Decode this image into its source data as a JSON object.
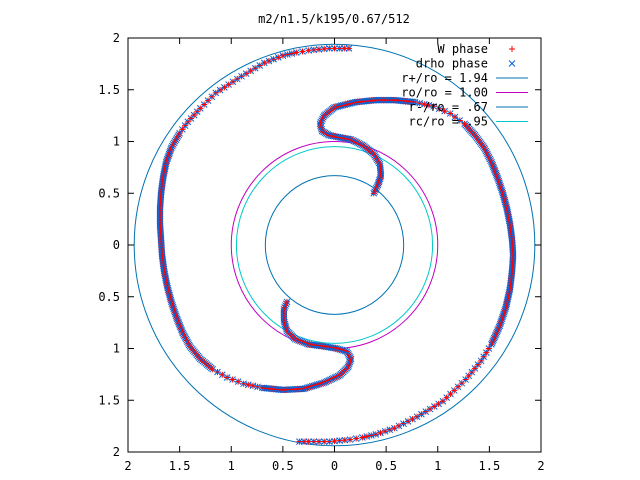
{
  "chart_data": {
    "type": "scatter",
    "title": "m2/n1.5/k195/0.67/512",
    "xlim": [
      -2,
      2
    ],
    "ylim": [
      -2,
      2
    ],
    "xticks": [
      -2,
      -1.5,
      -1,
      -0.5,
      0,
      0.5,
      1,
      1.5,
      2
    ],
    "yticks": [
      -2,
      -1.5,
      -1,
      -0.5,
      0,
      0.5,
      1,
      1.5,
      2
    ],
    "xtick_labels": [
      "2",
      "1.5",
      "1",
      "0.5",
      "0",
      "0.5",
      "1",
      "1.5",
      "2"
    ],
    "ytick_labels": [
      "2",
      "1.5",
      "1",
      "0.5",
      "0",
      "0.5",
      "1",
      "1.5",
      "2"
    ],
    "grid": false,
    "legend_position": "top-right",
    "series": [
      {
        "name": "W phase",
        "kind": "points",
        "marker": "plus",
        "color": "#ff0000"
      },
      {
        "name": "drho phase",
        "kind": "points",
        "marker": "cross",
        "color": "#0066dd"
      },
      {
        "name": "r+/ro = 1.94",
        "kind": "circle",
        "radius": 1.94,
        "color": "#0072b2"
      },
      {
        "name": "ro/ro = 1.00",
        "kind": "circle",
        "radius": 1.0,
        "color": "#c000c0"
      },
      {
        "name": "r-/ro = .67",
        "kind": "circle",
        "radius": 0.67,
        "color": "#0072b2"
      },
      {
        "name": "rc/ro = .95",
        "kind": "circle",
        "radius": 0.95,
        "color": "#00c8c8"
      }
    ],
    "arm_upper": [
      [
        0.14,
        1.9
      ],
      [
        0.05,
        1.9
      ],
      [
        -0.05,
        1.9
      ],
      [
        -0.15,
        1.89
      ],
      [
        -0.25,
        1.88
      ],
      [
        -0.37,
        1.86
      ],
      [
        -0.5,
        1.83
      ],
      [
        -0.68,
        1.76
      ],
      [
        -0.9,
        1.63
      ],
      [
        -1.15,
        1.47
      ],
      [
        -1.3,
        1.32
      ],
      [
        -1.42,
        1.19
      ],
      [
        -1.5,
        1.08
      ],
      [
        -1.58,
        0.94
      ],
      [
        -1.63,
        0.8
      ],
      [
        -1.66,
        0.65
      ],
      [
        -1.68,
        0.5
      ],
      [
        -1.69,
        0.35
      ],
      [
        -1.69,
        0.2
      ],
      [
        -1.68,
        0.05
      ],
      [
        -1.67,
        -0.1
      ],
      [
        -1.65,
        -0.25
      ],
      [
        -1.62,
        -0.4
      ],
      [
        -1.58,
        -0.55
      ],
      [
        -1.53,
        -0.7
      ],
      [
        -1.47,
        -0.85
      ],
      [
        -1.4,
        -0.98
      ],
      [
        -1.3,
        -1.1
      ],
      [
        -1.18,
        -1.2
      ],
      [
        -1.04,
        -1.28
      ],
      [
        -0.88,
        -1.34
      ],
      [
        -0.7,
        -1.38
      ],
      [
        -0.5,
        -1.4
      ],
      [
        -0.3,
        -1.39
      ],
      [
        -0.1,
        -1.33
      ],
      [
        0.05,
        -1.26
      ],
      [
        0.13,
        -1.18
      ],
      [
        0.16,
        -1.1
      ],
      [
        0.12,
        -1.03
      ],
      [
        0.02,
        -1.0
      ],
      [
        -0.1,
        -0.98
      ],
      [
        -0.25,
        -0.96
      ],
      [
        -0.38,
        -0.91
      ],
      [
        -0.46,
        -0.83
      ],
      [
        -0.49,
        -0.73
      ],
      [
        -0.49,
        -0.62
      ],
      [
        -0.46,
        -0.55
      ]
    ],
    "arm_lower": [
      [
        -0.34,
        -1.9
      ],
      [
        -0.25,
        -1.9
      ],
      [
        -0.15,
        -1.9
      ],
      [
        -0.05,
        -1.9
      ],
      [
        0.05,
        -1.89
      ],
      [
        0.15,
        -1.88
      ],
      [
        0.27,
        -1.86
      ],
      [
        0.4,
        -1.83
      ],
      [
        0.58,
        -1.77
      ],
      [
        0.8,
        -1.66
      ],
      [
        1.05,
        -1.51
      ],
      [
        1.27,
        -1.3
      ],
      [
        1.42,
        -1.12
      ],
      [
        1.52,
        -0.96
      ],
      [
        1.6,
        -0.78
      ],
      [
        1.66,
        -0.6
      ],
      [
        1.7,
        -0.42
      ],
      [
        1.72,
        -0.25
      ],
      [
        1.73,
        -0.1
      ],
      [
        1.72,
        0.05
      ],
      [
        1.7,
        0.2
      ],
      [
        1.67,
        0.35
      ],
      [
        1.63,
        0.5
      ],
      [
        1.58,
        0.65
      ],
      [
        1.52,
        0.8
      ],
      [
        1.45,
        0.94
      ],
      [
        1.36,
        1.06
      ],
      [
        1.26,
        1.17
      ],
      [
        1.12,
        1.27
      ],
      [
        0.96,
        1.34
      ],
      [
        0.78,
        1.38
      ],
      [
        0.58,
        1.4
      ],
      [
        0.4,
        1.4
      ],
      [
        0.2,
        1.38
      ],
      [
        0.0,
        1.33
      ],
      [
        -0.1,
        1.25
      ],
      [
        -0.14,
        1.17
      ],
      [
        -0.12,
        1.1
      ],
      [
        -0.05,
        1.06
      ],
      [
        0.05,
        1.04
      ],
      [
        0.16,
        1.02
      ],
      [
        0.28,
        0.96
      ],
      [
        0.38,
        0.88
      ],
      [
        0.44,
        0.78
      ],
      [
        0.45,
        0.67
      ],
      [
        0.42,
        0.58
      ],
      [
        0.38,
        0.5
      ]
    ]
  }
}
